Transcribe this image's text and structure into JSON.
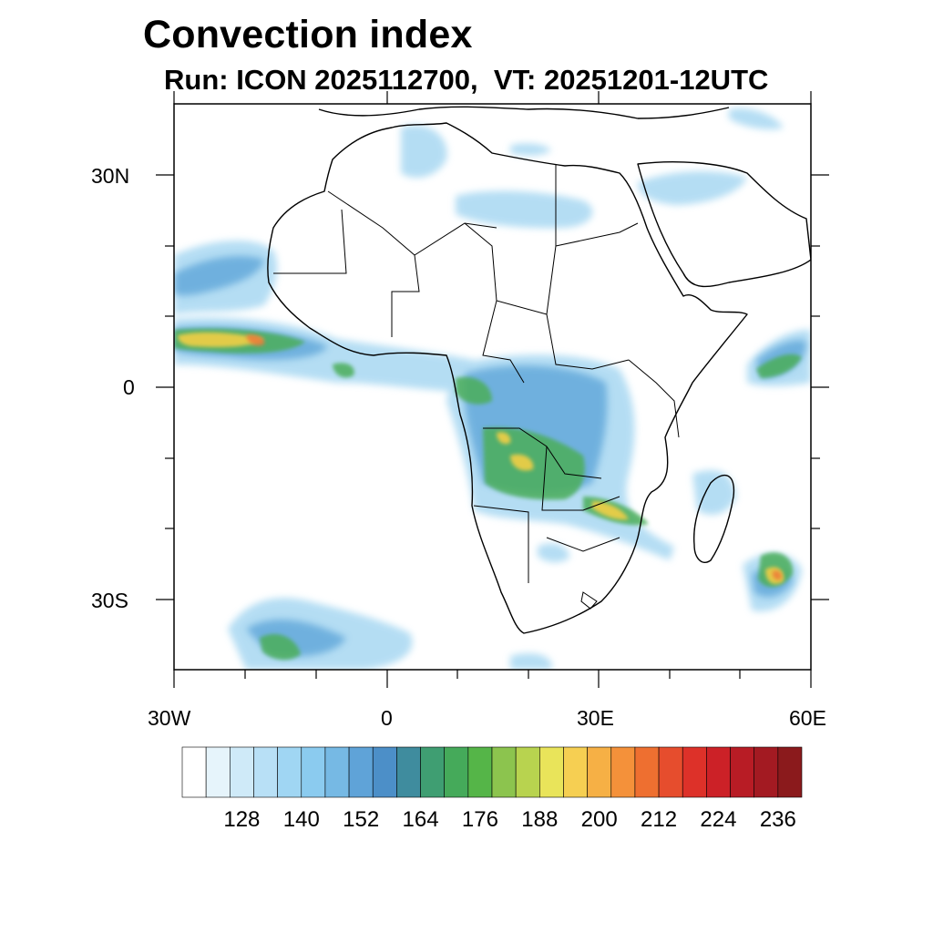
{
  "header": {
    "title": "Convection index",
    "subtitle": "Run: ICON 2025112700,  VT: 20251201-12UTC"
  },
  "map": {
    "region": "Africa",
    "lon_range": [
      -30,
      60
    ],
    "lat_range": [
      -40,
      40
    ],
    "x_tick_labels": [
      "30W",
      "0",
      "30E",
      "60E"
    ],
    "y_tick_labels": [
      "30N",
      "0",
      "30S"
    ]
  },
  "colorbar": {
    "labels": [
      "128",
      "140",
      "152",
      "164",
      "176",
      "188",
      "200",
      "212",
      "224",
      "236"
    ],
    "colors": [
      "#ffffff",
      "#e6f4fb",
      "#cfeaf8",
      "#b8e0f6",
      "#a0d6f3",
      "#8bcbef",
      "#76b9e4",
      "#5fa3d8",
      "#4c8fc8",
      "#3f8c9e",
      "#3f9e72",
      "#45aa5a",
      "#55b548",
      "#8cc44e",
      "#b8d34f",
      "#e9e45a",
      "#f6cf52",
      "#f6b045",
      "#f4913a",
      "#ee6f30",
      "#e64d2d",
      "#dd3129",
      "#cc2127",
      "#b81c25",
      "#a31a22",
      "#8b1a1c"
    ]
  }
}
